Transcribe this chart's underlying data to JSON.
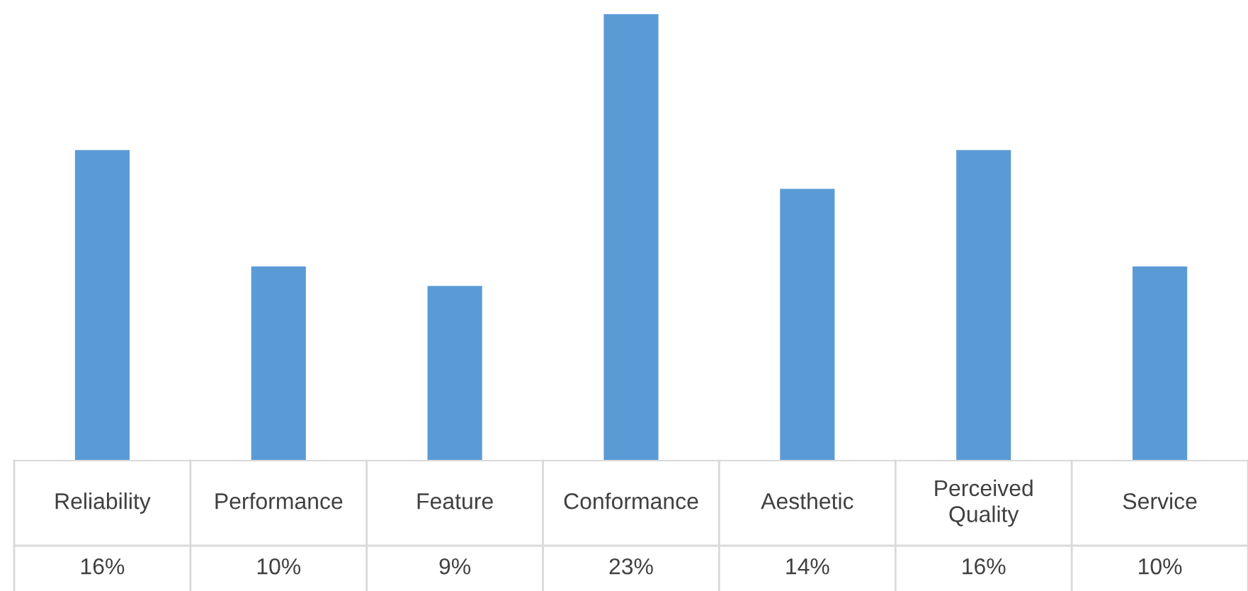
{
  "chart_data": {
    "type": "bar",
    "categories": [
      "Reliability",
      "Performance",
      "Feature",
      "Conformance",
      "Aesthetic",
      "Perceived Quality",
      "Service"
    ],
    "values": [
      16,
      10,
      9,
      23,
      14,
      16,
      10
    ],
    "value_labels": [
      "16%",
      "10%",
      "9%",
      "23%",
      "14%",
      "16%",
      "10%"
    ],
    "color": "#5b9bd5"
  }
}
